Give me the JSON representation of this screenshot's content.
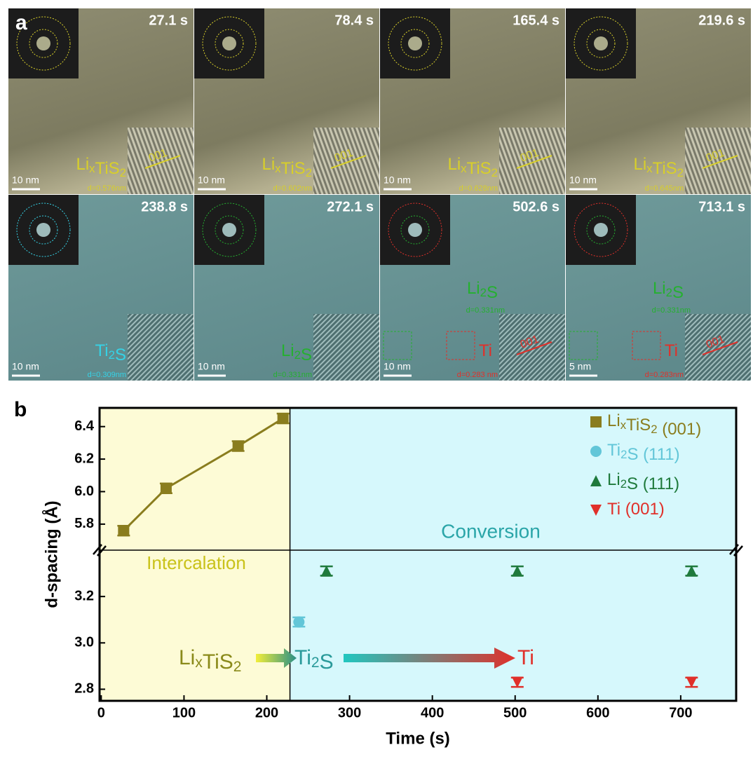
{
  "panel_a": {
    "letter": "a",
    "tiles": [
      {
        "time": "27.1 s",
        "scale": "10 nm",
        "phases": [
          {
            "label": "LixTiS2",
            "d": "d=0.576nm"
          }
        ],
        "inset_label": "001"
      },
      {
        "time": "78.4 s",
        "scale": "10 nm",
        "phases": [
          {
            "label": "LixTiS2",
            "d": "d=0.602nm"
          }
        ],
        "inset_label": "001"
      },
      {
        "time": "165.4 s",
        "scale": "10 nm",
        "phases": [
          {
            "label": "LixTiS2",
            "d": "d=0.628nm"
          }
        ],
        "inset_label": "001"
      },
      {
        "time": "219.6 s",
        "scale": "10 nm",
        "phases": [
          {
            "label": "LixTiS2",
            "d": "d=0.645nm"
          }
        ],
        "inset_label": "001"
      },
      {
        "time": "238.8 s",
        "scale": "10 nm",
        "phases": [
          {
            "label": "Ti2S",
            "d": "d=0.309nm"
          }
        ]
      },
      {
        "time": "272.1 s",
        "scale": "10 nm",
        "phases": [
          {
            "label": "Li2S",
            "d": "d=0.331nm"
          }
        ]
      },
      {
        "time": "502.6 s",
        "scale": "10 nm",
        "phases": [
          {
            "label": "Li2S",
            "d": "d=0.331nm"
          },
          {
            "label": "Ti",
            "d": "d=0.283 nm"
          }
        ],
        "inset_label": "001"
      },
      {
        "time": "713.1 s",
        "scale": "5 nm",
        "phases": [
          {
            "label": "Li2S",
            "d": "d=0.331nm"
          },
          {
            "label": "Ti",
            "d": "d=0.283nm"
          }
        ],
        "inset_label": "001"
      }
    ]
  },
  "chart_data": {
    "type": "scatter",
    "letter": "b",
    "x_label": "Time (s)",
    "y_label": "d-spacing (Å)",
    "xlim": [
      -2,
      767
    ],
    "xticks": [
      0,
      100,
      200,
      300,
      400,
      500,
      600,
      700
    ],
    "ylim_lower": [
      2.75,
      3.4
    ],
    "ylim_upper": [
      5.64,
      6.515
    ],
    "yticks": [
      2.8,
      3.0,
      3.2,
      5.8,
      6.0,
      6.2,
      6.4
    ],
    "phase_boundary": 228,
    "regions": [
      "Intercalation",
      "Conversion"
    ],
    "scheme": [
      "LixTiS2",
      "Ti2S",
      "Ti"
    ],
    "legend": "upper right",
    "series": [
      {
        "name": "LixTiS2 (001)",
        "color": "#8a7d1e",
        "marker": "square",
        "line": true,
        "x": [
          27.1,
          78.4,
          165.4,
          219.6
        ],
        "values": [
          5.76,
          6.02,
          6.28,
          6.45
        ],
        "errors": [
          0.03,
          0.03,
          0.03,
          0.03
        ]
      },
      {
        "name": "Ti2S (111)",
        "color": "#62c6d8",
        "marker": "circle",
        "x": [
          238.8
        ],
        "values": [
          3.09
        ],
        "errors": [
          0.02
        ]
      },
      {
        "name": "Li2S (111)",
        "color": "#1f7a3c",
        "marker": "triangle-up",
        "x": [
          272.1,
          502.6,
          713.1
        ],
        "values": [
          3.31,
          3.31,
          3.31
        ],
        "errors": [
          0.02,
          0.02,
          0.02
        ]
      },
      {
        "name": "Ti (001)",
        "color": "#e0302a",
        "marker": "triangle-down",
        "x": [
          502.6,
          713.1
        ],
        "values": [
          2.83,
          2.83
        ],
        "errors": [
          0.02,
          0.02
        ]
      }
    ]
  }
}
